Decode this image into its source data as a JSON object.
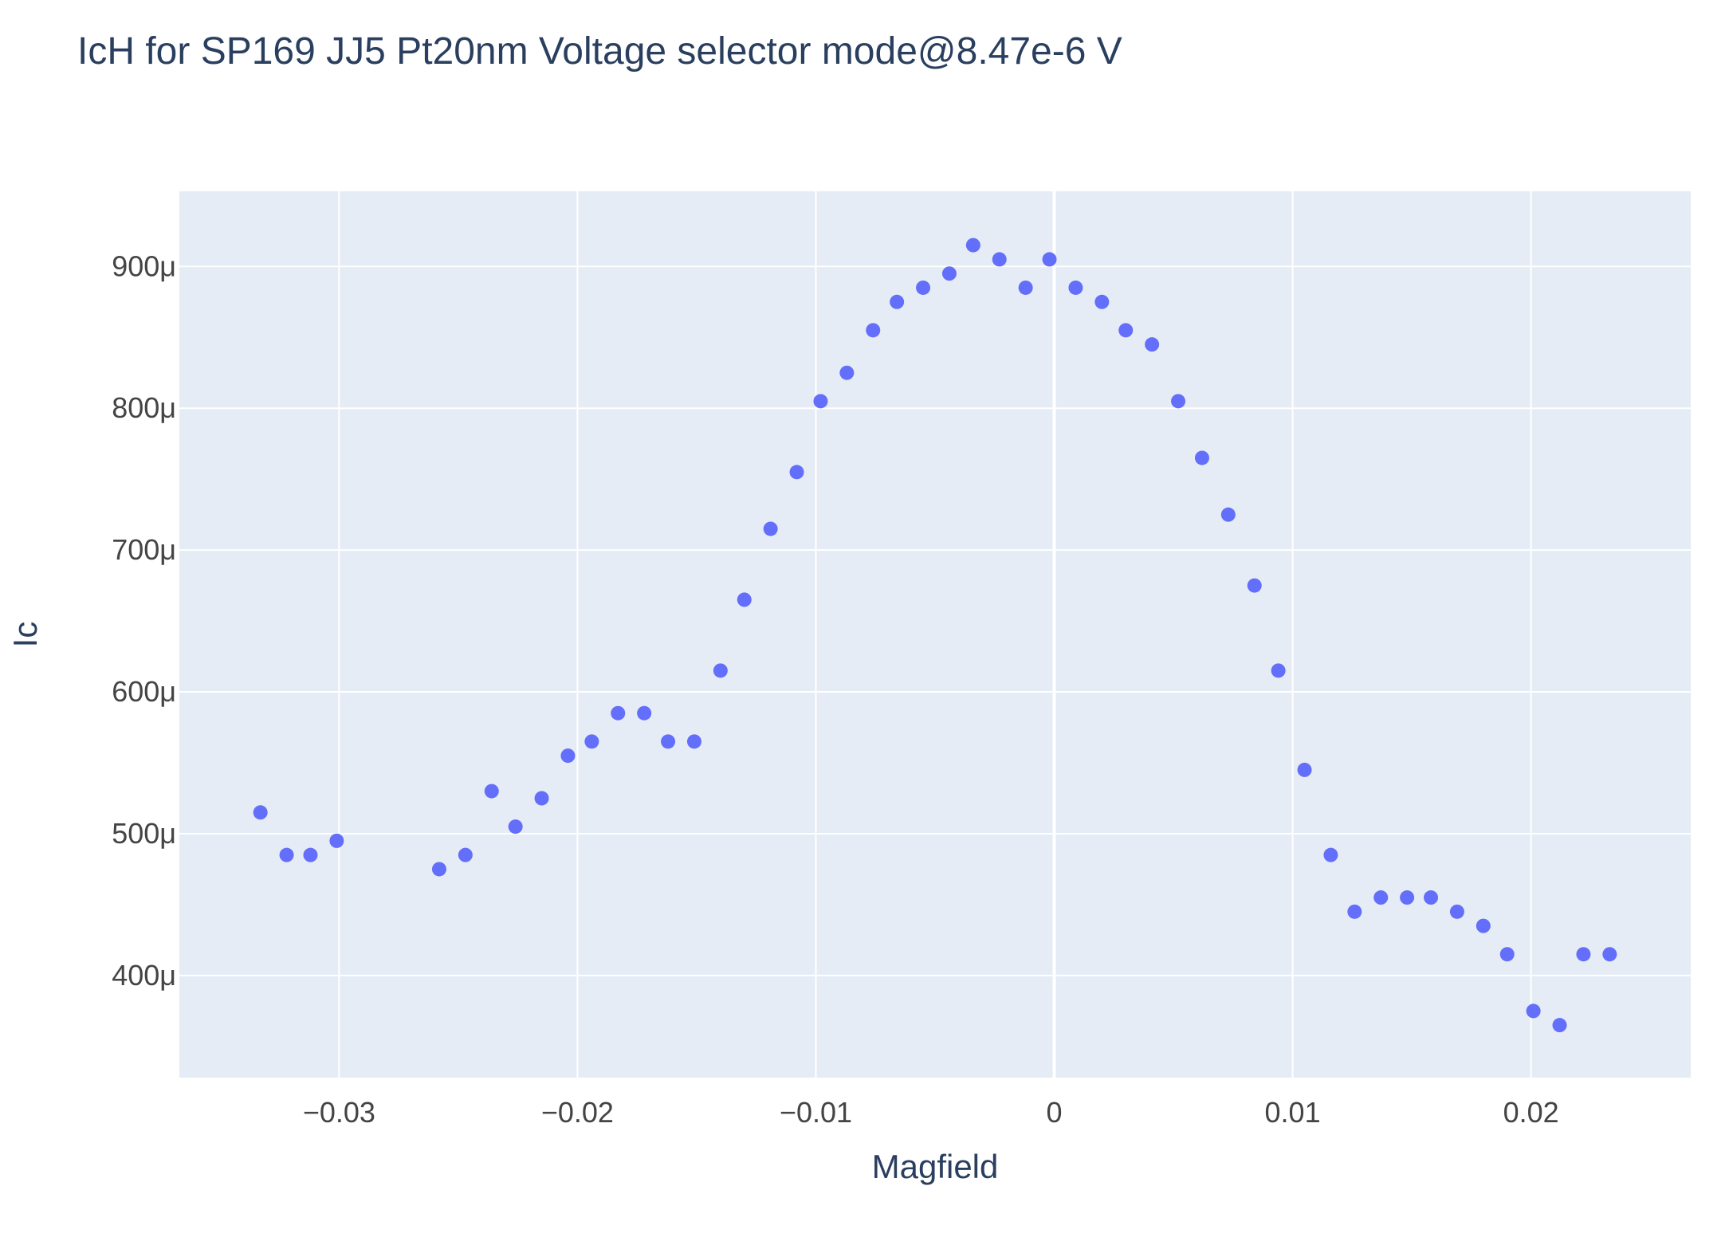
{
  "colors": {
    "plot_background": "#e5ecf6",
    "grid": "#ffffff",
    "marker": "#636efa",
    "text": "#2a3f5f",
    "tick_text": "#444444"
  },
  "chart_data": {
    "type": "scatter",
    "title": "IcH for SP169 JJ5 Pt20nm Voltage selector mode@8.47e-6 V",
    "xlabel": "Magfield",
    "ylabel": "Ic",
    "xlim": [
      -0.0367,
      0.0267
    ],
    "ylim": [
      0.000328,
      0.000953
    ],
    "grid": true,
    "x_ticks": [
      -0.03,
      -0.02,
      -0.01,
      0,
      0.01,
      0.02
    ],
    "x_tick_labels": [
      "−0.03",
      "−0.02",
      "−0.01",
      "0",
      "0.01",
      "0.02"
    ],
    "y_ticks": [
      0.0004,
      0.0005,
      0.0006,
      0.0007,
      0.0008,
      0.0009
    ],
    "y_tick_labels": [
      "400μ",
      "500μ",
      "600μ",
      "700μ",
      "800μ",
      "900μ"
    ],
    "series": [
      {
        "marker_color": "#636efa",
        "x": [
          -0.0333,
          -0.0322,
          -0.0312,
          -0.0301,
          -0.0258,
          -0.0247,
          -0.0236,
          -0.0226,
          -0.0215,
          -0.0204,
          -0.0194,
          -0.0183,
          -0.0172,
          -0.0162,
          -0.0151,
          -0.014,
          -0.013,
          -0.0119,
          -0.0108,
          -0.0098,
          -0.0087,
          -0.0076,
          -0.0066,
          -0.0055,
          -0.0044,
          -0.0034,
          -0.0023,
          -0.0012,
          -0.0002,
          0.0009,
          0.002,
          0.003,
          0.0041,
          0.0052,
          0.0062,
          0.0073,
          0.0084,
          0.0094,
          0.0105,
          0.0116,
          0.0126,
          0.0137,
          0.0148,
          0.0158,
          0.0169,
          0.018,
          0.019,
          0.0201,
          0.0212,
          0.0222,
          0.0233
        ],
        "y": [
          0.000515,
          0.000485,
          0.000485,
          0.000495,
          0.000475,
          0.000485,
          0.00053,
          0.000505,
          0.000525,
          0.000555,
          0.000565,
          0.000585,
          0.000585,
          0.000565,
          0.000565,
          0.000615,
          0.000665,
          0.000715,
          0.000755,
          0.000805,
          0.000825,
          0.000855,
          0.000875,
          0.000885,
          0.000895,
          0.000915,
          0.000905,
          0.000885,
          0.000905,
          0.000885,
          0.000875,
          0.000855,
          0.000845,
          0.000805,
          0.000765,
          0.000725,
          0.000675,
          0.000615,
          0.000545,
          0.000485,
          0.000445,
          0.000455,
          0.000455,
          0.000455,
          0.000445,
          0.000435,
          0.000415,
          0.000375,
          0.000365,
          0.000415,
          0.000415
        ]
      }
    ]
  }
}
